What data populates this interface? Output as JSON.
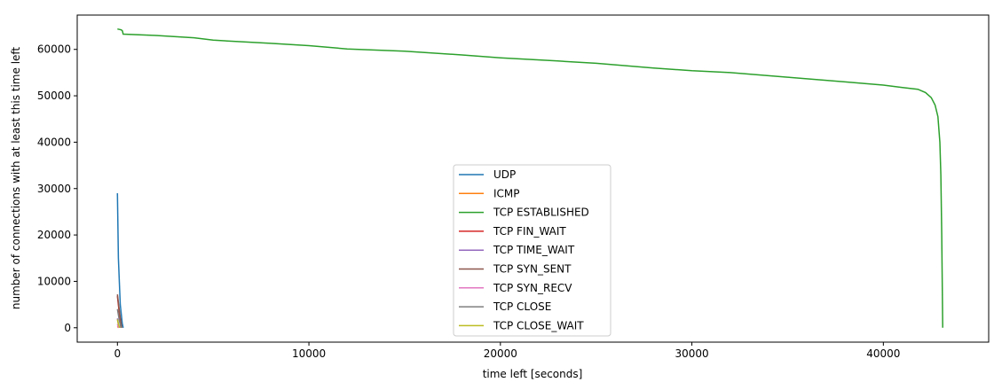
{
  "chart_data": {
    "type": "line",
    "title": "",
    "xlabel": "time left [seconds]",
    "ylabel": "number of connections with at least this time left",
    "xlim": [
      -2100,
      45500
    ],
    "ylim": [
      -3100,
      67400
    ],
    "xticks": [
      0,
      10000,
      20000,
      30000,
      40000
    ],
    "yticks": [
      0,
      10000,
      20000,
      30000,
      40000,
      50000,
      60000
    ],
    "grid": false,
    "legend": "bottom-center",
    "series": [
      {
        "name": "UDP",
        "color": "#1f77b4",
        "x": [
          0,
          50,
          150,
          250,
          300
        ],
        "y": [
          29000,
          15000,
          5000,
          1000,
          0
        ]
      },
      {
        "name": "ICMP",
        "color": "#ff7f0e",
        "x": [
          0,
          60
        ],
        "y": [
          300,
          0
        ]
      },
      {
        "name": "TCP ESTABLISHED",
        "color": "#2ca02c",
        "x": [
          0,
          200,
          260,
          300,
          2000,
          4000,
          5000,
          8000,
          10000,
          12000,
          15000,
          18000,
          20000,
          23000,
          25000,
          28000,
          30000,
          32000,
          35000,
          38000,
          40000,
          41000,
          41800,
          42200,
          42500,
          42700,
          42850,
          42950,
          43000,
          43050,
          43100
        ],
        "y": [
          64400,
          64200,
          64000,
          63300,
          63000,
          62500,
          62000,
          61300,
          60800,
          60100,
          59600,
          58800,
          58200,
          57500,
          57000,
          56000,
          55400,
          55000,
          54000,
          53000,
          52300,
          51800,
          51400,
          50700,
          49600,
          48000,
          45500,
          40000,
          33000,
          20000,
          0
        ]
      },
      {
        "name": "TCP FIN_WAIT",
        "color": "#d62728",
        "x": [
          0,
          100,
          200
        ],
        "y": [
          6800,
          3000,
          0
        ]
      },
      {
        "name": "TCP TIME_WAIT",
        "color": "#9467bd",
        "x": [
          0,
          80
        ],
        "y": [
          2000,
          0
        ]
      },
      {
        "name": "TCP SYN_SENT",
        "color": "#8c564b",
        "x": [
          0,
          120,
          220
        ],
        "y": [
          7200,
          3000,
          0
        ]
      },
      {
        "name": "TCP SYN_RECV",
        "color": "#e377c2",
        "x": [
          0,
          60
        ],
        "y": [
          800,
          0
        ]
      },
      {
        "name": "TCP CLOSE",
        "color": "#7f7f7f",
        "x": [
          0,
          100,
          180
        ],
        "y": [
          4000,
          1500,
          0
        ]
      },
      {
        "name": "TCP CLOSE_WAIT",
        "color": "#bcbd22",
        "x": [
          0,
          60,
          120
        ],
        "y": [
          1800,
          600,
          0
        ]
      }
    ]
  }
}
